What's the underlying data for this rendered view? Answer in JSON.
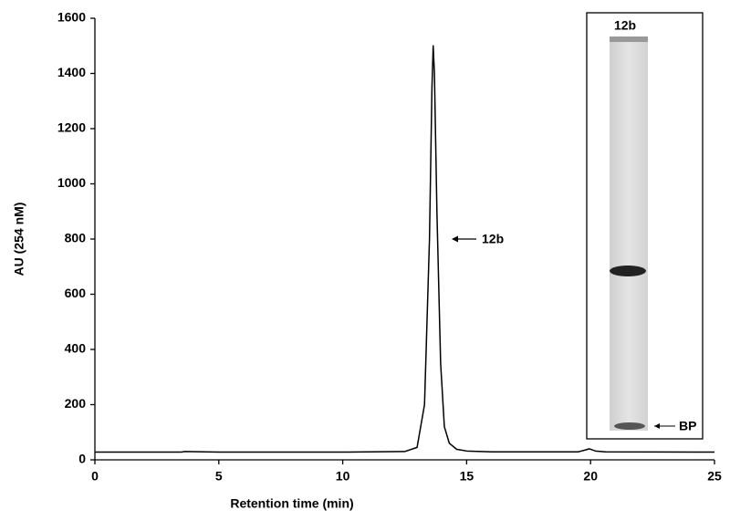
{
  "chart_data": {
    "type": "line",
    "x_label": "Retention time (min)",
    "y_label": "AU (254 nM)",
    "x": [
      0,
      3.5,
      3.6,
      5,
      10,
      12.5,
      13.0,
      13.3,
      13.5,
      13.6,
      13.65,
      13.7,
      13.8,
      13.95,
      14.1,
      14.3,
      14.6,
      15,
      16,
      19.5,
      19.8,
      19.95,
      20.2,
      20.6,
      25
    ],
    "values": [
      28,
      28,
      30,
      28,
      28,
      30,
      45,
      200,
      800,
      1350,
      1500,
      1400,
      900,
      350,
      120,
      60,
      38,
      32,
      29,
      29,
      36,
      40,
      32,
      29,
      28
    ],
    "color": "#000000",
    "xlim": [
      0,
      25
    ],
    "xticks": [
      0,
      5,
      10,
      15,
      20,
      25
    ],
    "ylim": [
      0,
      1600
    ],
    "yticks": [
      0,
      200,
      400,
      600,
      800,
      1000,
      1200,
      1400,
      1600
    ],
    "annotation": "12b",
    "inset": {
      "lane_label": "12b",
      "marker_label": "BP"
    }
  }
}
